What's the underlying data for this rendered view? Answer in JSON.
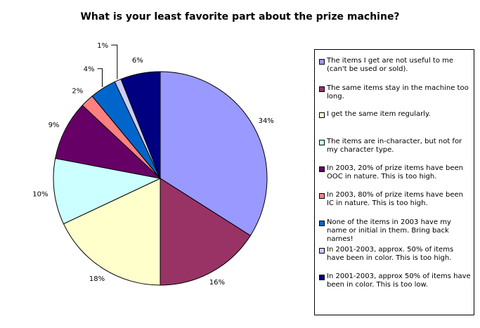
{
  "chart_data": {
    "type": "pie",
    "title": "What is your least favorite part about the prize machine?",
    "slices": [
      {
        "label": "The items I get are not useful to me (can't be used or sold).",
        "value": 34,
        "display": "34%",
        "color": "#9999ff"
      },
      {
        "label": "The same items stay in the machine too long.",
        "value": 16,
        "display": "16%",
        "color": "#993366"
      },
      {
        "label": "I get the same item regularly.",
        "value": 18,
        "display": "18%",
        "color": "#ffffcc"
      },
      {
        "label": "The items are in-character, but not for my character type.",
        "value": 10,
        "display": "10%",
        "color": "#ccffff"
      },
      {
        "label": "In 2003, 20% of prize items have been OOC in nature. This is too high.",
        "value": 9,
        "display": "9%",
        "color": "#660066"
      },
      {
        "label": "In 2003, 80% of prize items have been IC in nature. This is too high.",
        "value": 2,
        "display": "2%",
        "color": "#ff8080"
      },
      {
        "label": "None of the items in 2003 have my name or initial in them. Bring back names!",
        "value": 4,
        "display": "4%",
        "color": "#0066cc"
      },
      {
        "label": "In 2001-2003, approx. 50% of items have been in color. This is too high.",
        "value": 1,
        "display": "1%",
        "color": "#ccccff"
      },
      {
        "label": "In 2001-2003, approx 50% of items have been in color. This is too low.",
        "value": 6,
        "display": "6%",
        "color": "#000080"
      }
    ],
    "legend_position": "right"
  }
}
